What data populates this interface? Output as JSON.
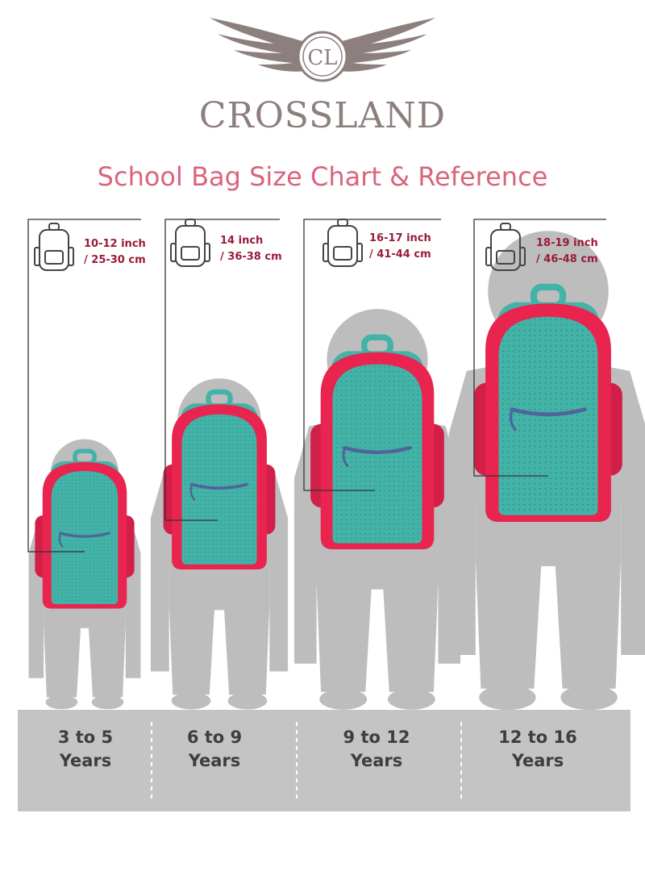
{
  "brand": {
    "monogram": "CL",
    "name": "CROSSLAND"
  },
  "title": "School Bag Size Chart & Reference",
  "colors": {
    "brand_gray": "#8d7f7d",
    "title_pink": "#d9657d",
    "size_text": "#9a1b3a",
    "silhouette": "#bdbdbd",
    "bag_red": "#e8244f",
    "bag_teal": "#43b3a8",
    "floor_band": "#c4c4c4"
  },
  "columns": [
    {
      "age_line1": "3 to 5",
      "age_line2": "Years",
      "size_inch": "10-12 inch",
      "size_cm": "/ 25-30 cm"
    },
    {
      "age_line1": "6 to 9",
      "age_line2": "Years",
      "size_inch": "14 inch",
      "size_cm": "/ 36-38 cm"
    },
    {
      "age_line1": "9 to 12",
      "age_line2": "Years",
      "size_inch": "16-17 inch",
      "size_cm": "/ 41-44 cm"
    },
    {
      "age_line1": "12 to 16",
      "age_line2": "Years",
      "size_inch": "18-19 inch",
      "size_cm": "/ 46-48 cm"
    }
  ]
}
